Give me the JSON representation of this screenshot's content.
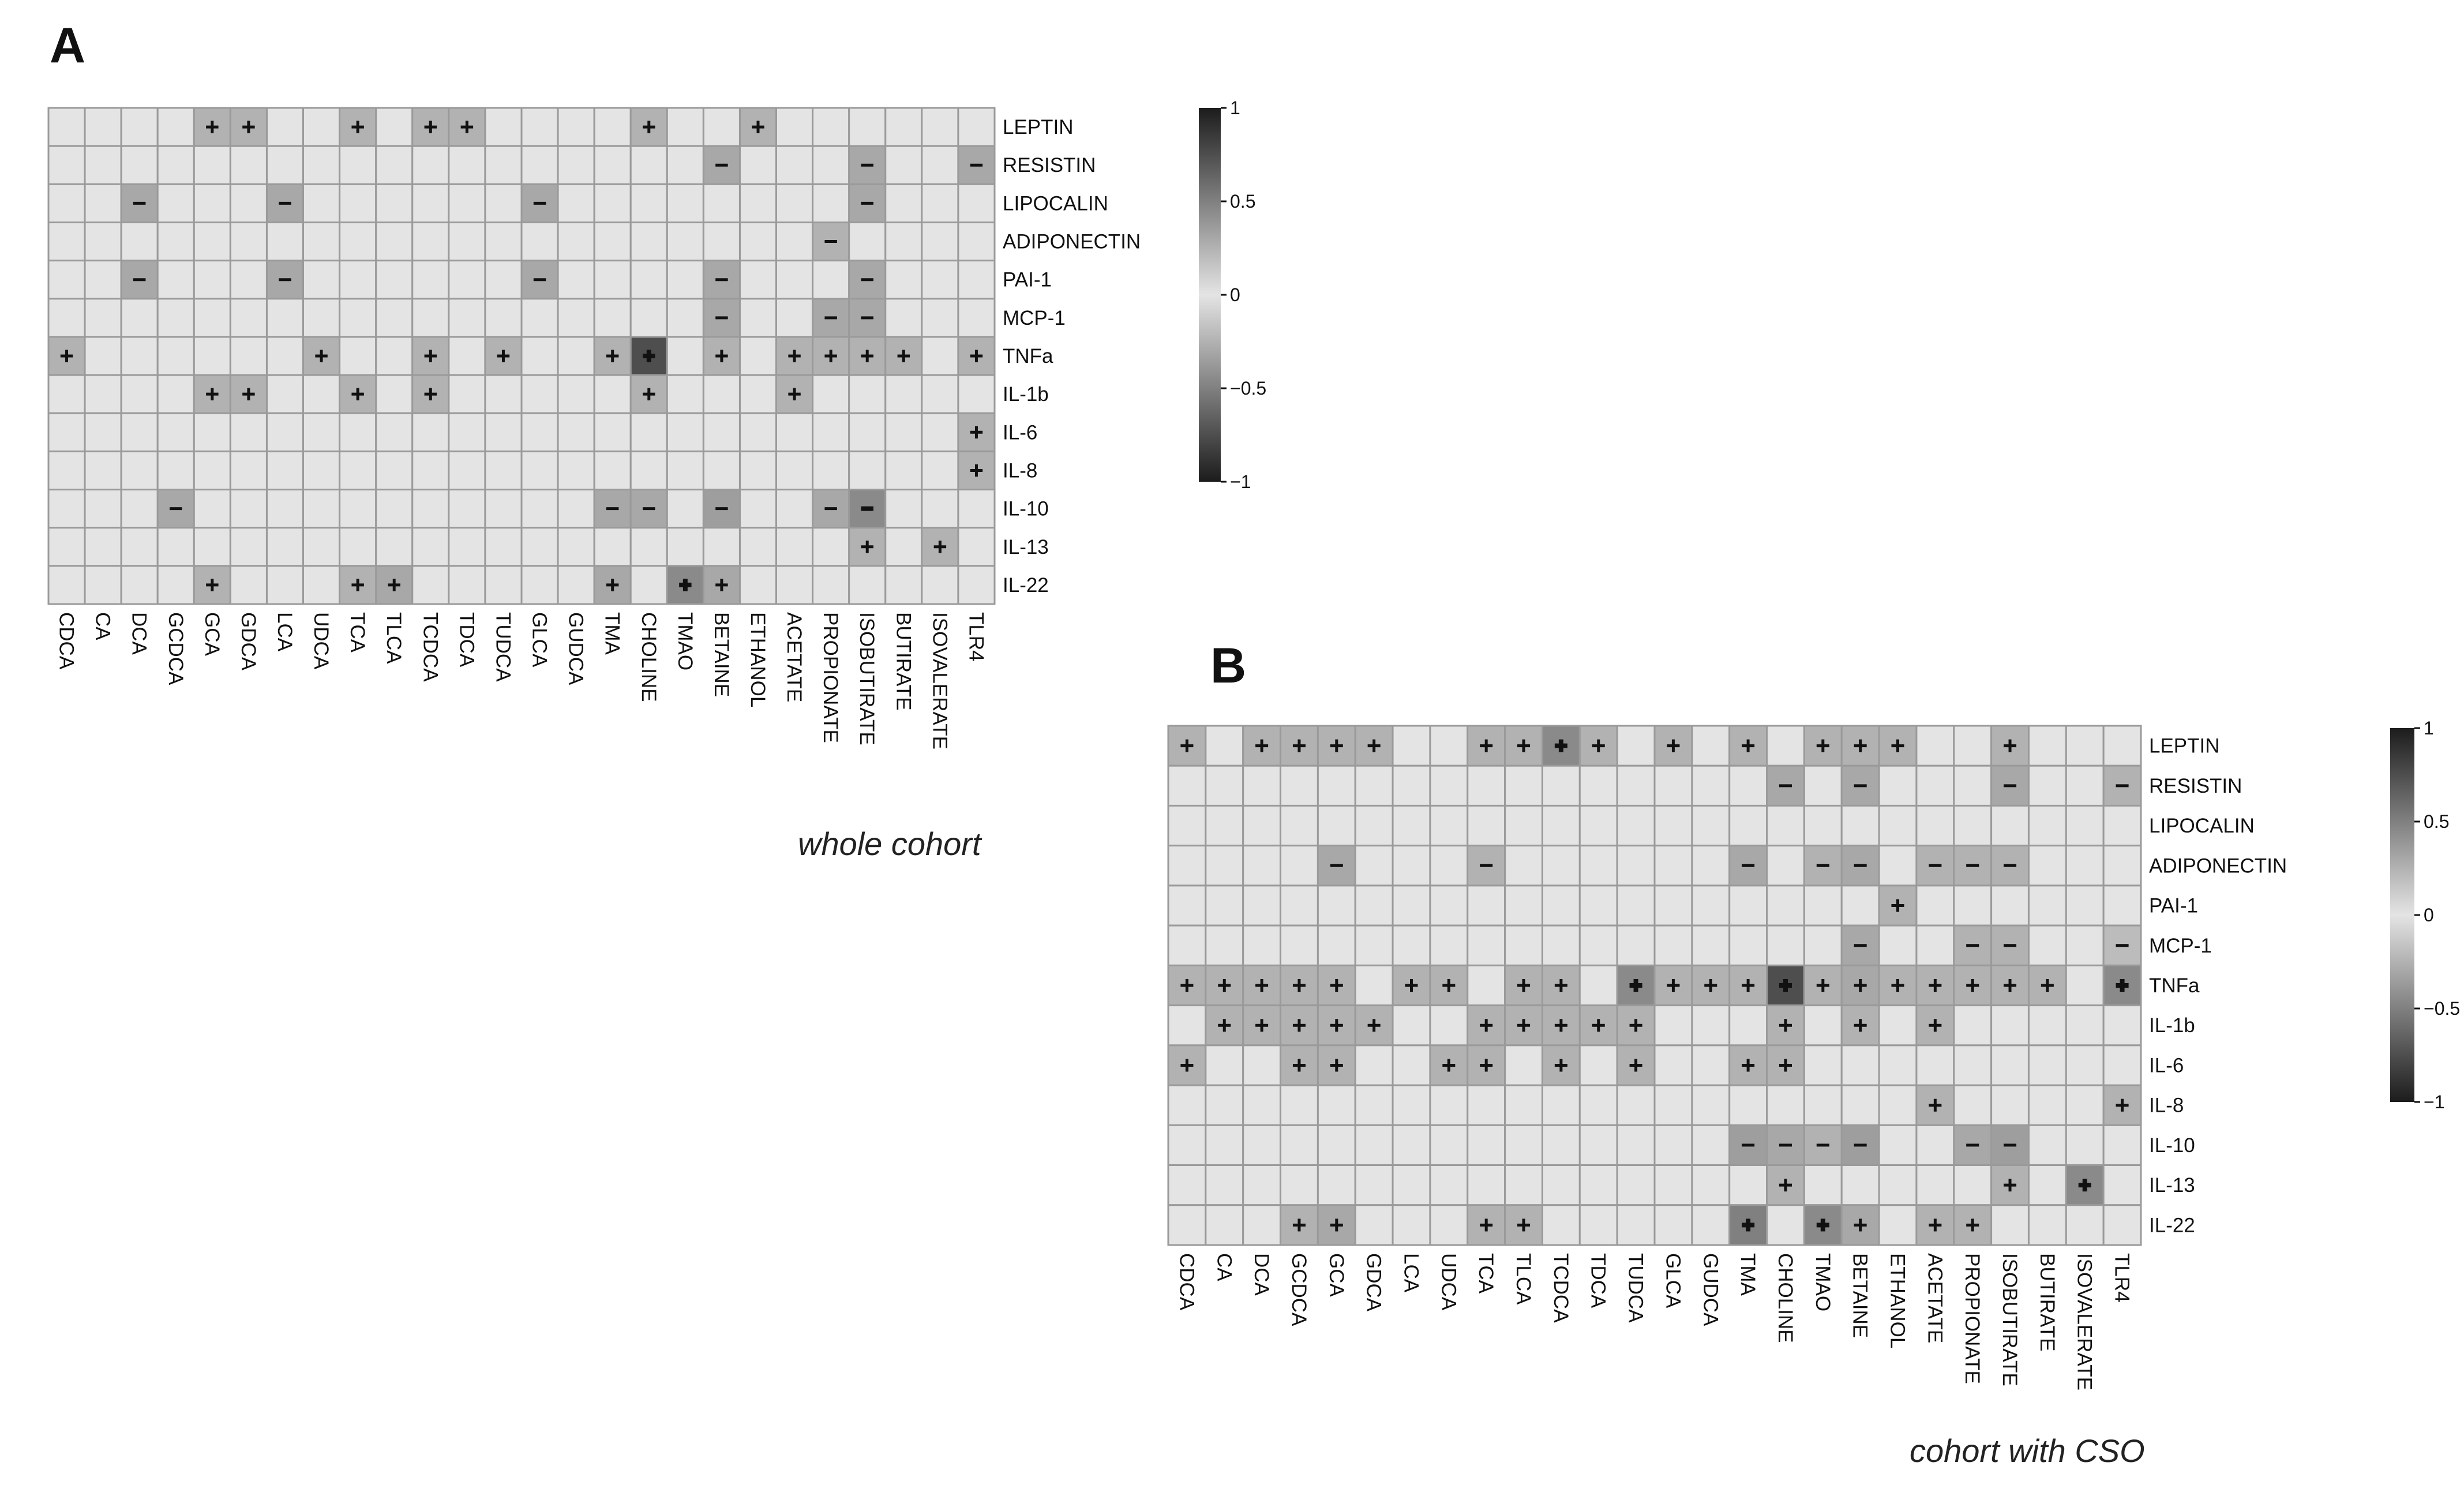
{
  "panels": [
    {
      "letter": "A",
      "caption": "whole cohort"
    },
    {
      "letter": "B",
      "caption": "cohort with CSO"
    }
  ],
  "chart_data": [
    {
      "type": "heatmap",
      "panel": "A",
      "columns": [
        "CDCA",
        "CA",
        "DCA",
        "GCDCA",
        "GCA",
        "GDCA",
        "LCA",
        "UDCA",
        "TCA",
        "TLCA",
        "TCDCA",
        "TDCA",
        "TUDCA",
        "GLCA",
        "GUDCA",
        "TMA",
        "CHOLINE",
        "TMAO",
        "BETAINE",
        "ETHANOL",
        "ACETATE",
        "PROPIONATE",
        "ISOBUTIRATE",
        "BUTIRATE",
        "ISOVALERATE",
        "TLR4"
      ],
      "rows": [
        "LEPTIN",
        "RESISTIN",
        "LIPOCALIN",
        "ADIPONECTIN",
        "PAI-1",
        "MCP-1",
        "TNFa",
        "IL-1b",
        "IL-6",
        "IL-8",
        "IL-10",
        "IL-13",
        "IL-22"
      ],
      "values": [
        [
          0,
          0,
          0,
          0,
          0.25,
          0.25,
          0,
          0,
          0.25,
          0,
          0.25,
          0.25,
          0,
          0,
          0,
          0,
          0.25,
          0,
          0,
          0.25,
          0,
          0,
          0,
          0,
          0,
          0
        ],
        [
          0,
          0,
          0,
          0,
          0,
          0,
          0,
          0,
          0,
          0,
          0,
          0,
          0,
          0,
          0,
          0,
          0,
          0,
          -0.3,
          0,
          0,
          0,
          -0.3,
          0,
          0,
          -0.3
        ],
        [
          0,
          0,
          -0.3,
          0,
          0,
          0,
          -0.3,
          0,
          0,
          0,
          0,
          0,
          0,
          -0.3,
          0,
          0,
          0,
          0,
          0,
          0,
          0,
          0,
          -0.3,
          0,
          0,
          0
        ],
        [
          0,
          0,
          0,
          0,
          0,
          0,
          0,
          0,
          0,
          0,
          0,
          0,
          0,
          0,
          0,
          0,
          0,
          0,
          0,
          0,
          0,
          -0.25,
          0,
          0,
          0,
          0
        ],
        [
          0,
          0,
          -0.3,
          0,
          0,
          0,
          -0.3,
          0,
          0,
          0,
          0,
          0,
          0,
          -0.3,
          0,
          0,
          0,
          0,
          -0.3,
          0,
          0,
          0,
          -0.3,
          0,
          0,
          0
        ],
        [
          0,
          0,
          0,
          0,
          0,
          0,
          0,
          0,
          0,
          0,
          0,
          0,
          0,
          0,
          0,
          0,
          0,
          0,
          -0.3,
          0,
          0,
          -0.3,
          -0.3,
          0,
          0,
          0
        ],
        [
          0.25,
          0,
          0,
          0,
          0,
          0,
          0,
          0.25,
          0,
          0,
          0.25,
          0,
          0.25,
          0,
          0,
          0.25,
          0.75,
          0,
          0.25,
          0,
          0.25,
          0.25,
          0.25,
          0.25,
          0,
          0.25
        ],
        [
          0,
          0,
          0,
          0,
          0.25,
          0.25,
          0,
          0,
          0.25,
          0,
          0.25,
          0,
          0,
          0,
          0,
          0,
          0.25,
          0,
          0,
          0,
          0.25,
          0,
          0,
          0,
          0,
          0
        ],
        [
          0,
          0,
          0,
          0,
          0,
          0,
          0,
          0,
          0,
          0,
          0,
          0,
          0,
          0,
          0,
          0,
          0,
          0,
          0,
          0,
          0,
          0,
          0,
          0,
          0,
          0.25
        ],
        [
          0,
          0,
          0,
          0,
          0,
          0,
          0,
          0,
          0,
          0,
          0,
          0,
          0,
          0,
          0,
          0,
          0,
          0,
          0,
          0,
          0,
          0,
          0,
          0,
          0,
          0.25
        ],
        [
          0,
          0,
          0,
          -0.3,
          0,
          0,
          0,
          0,
          0,
          0,
          0,
          0,
          0,
          0,
          0,
          -0.3,
          -0.3,
          0,
          -0.35,
          0,
          0,
          -0.3,
          -0.45,
          0,
          0,
          0
        ],
        [
          0,
          0,
          0,
          0,
          0,
          0,
          0,
          0,
          0,
          0,
          0,
          0,
          0,
          0,
          0,
          0,
          0,
          0,
          0,
          0,
          0,
          0,
          0.25,
          0,
          0.25,
          0
        ],
        [
          0,
          0,
          0,
          0,
          0.25,
          0,
          0,
          0,
          0.25,
          0.3,
          0,
          0,
          0,
          0,
          0,
          0.3,
          0,
          0.45,
          0.3,
          0,
          0,
          0,
          0,
          0,
          0,
          0
        ]
      ],
      "color_scale": {
        "min": -1,
        "max": 1,
        "ticks": [
          1,
          0.5,
          0,
          -0.5,
          -1
        ],
        "tick_labels": [
          "1",
          "0.5",
          "0",
          "−0.5",
          "−1"
        ]
      }
    },
    {
      "type": "heatmap",
      "panel": "B",
      "columns": [
        "CDCA",
        "CA",
        "DCA",
        "GCDCA",
        "GCA",
        "GDCA",
        "LCA",
        "UDCA",
        "TCA",
        "TLCA",
        "TCDCA",
        "TDCA",
        "TUDCA",
        "GLCA",
        "GUDCA",
        "TMA",
        "CHOLINE",
        "TMAO",
        "BETAINE",
        "ETHANOL",
        "ACETATE",
        "PROPIONATE",
        "ISOBUTIRATE",
        "BUTIRATE",
        "ISOVALERATE",
        "TLR4"
      ],
      "rows": [
        "LEPTIN",
        "RESISTIN",
        "LIPOCALIN",
        "ADIPONECTIN",
        "PAI-1",
        "MCP-1",
        "TNFa",
        "IL-1b",
        "IL-6",
        "IL-8",
        "IL-10",
        "IL-13",
        "IL-22"
      ],
      "values": [
        [
          0.25,
          0,
          0.25,
          0.25,
          0.25,
          0.25,
          0,
          0,
          0.25,
          0.25,
          0.45,
          0.25,
          0,
          0.25,
          0,
          0.25,
          0,
          0.25,
          0.25,
          0.25,
          0,
          0,
          0.25,
          0,
          0,
          0
        ],
        [
          0,
          0,
          0,
          0,
          0,
          0,
          0,
          0,
          0,
          0,
          0,
          0,
          0,
          0,
          0,
          0,
          -0.3,
          0,
          -0.3,
          0,
          0,
          0,
          -0.3,
          0,
          0,
          -0.25
        ],
        [
          0,
          0,
          0,
          0,
          0,
          0,
          0,
          0,
          0,
          0,
          0,
          0,
          0,
          0,
          0,
          0,
          0,
          0,
          0,
          0,
          0,
          0,
          0,
          0,
          0,
          0
        ],
        [
          0,
          0,
          0,
          0,
          -0.3,
          0,
          0,
          0,
          -0.25,
          0,
          0,
          0,
          0,
          0,
          0,
          -0.3,
          0,
          -0.25,
          -0.3,
          0,
          -0.25,
          -0.25,
          -0.25,
          0,
          0,
          0
        ],
        [
          0,
          0,
          0,
          0,
          0,
          0,
          0,
          0,
          0,
          0,
          0,
          0,
          0,
          0,
          0,
          0,
          0,
          0,
          0,
          0.25,
          0,
          0,
          0,
          0,
          0,
          0
        ],
        [
          0,
          0,
          0,
          0,
          0,
          0,
          0,
          0,
          0,
          0,
          0,
          0,
          0,
          0,
          0,
          0,
          0,
          0,
          -0.3,
          0,
          0,
          -0.25,
          -0.25,
          0,
          0,
          -0.2
        ],
        [
          0.25,
          0.25,
          0.25,
          0.25,
          0.25,
          0,
          0.25,
          0.25,
          0,
          0.25,
          0.25,
          0,
          0.45,
          0.25,
          0.25,
          0.25,
          0.75,
          0.25,
          0.3,
          0.25,
          0.25,
          0.25,
          0.25,
          0.25,
          0,
          0.45
        ],
        [
          0,
          0.25,
          0.25,
          0.25,
          0.25,
          0.25,
          0,
          0,
          0.25,
          0.25,
          0.25,
          0.25,
          0.25,
          0,
          0,
          0,
          0.25,
          0,
          0.25,
          0,
          0.25,
          0,
          0,
          0,
          0,
          0
        ],
        [
          0.25,
          0,
          0,
          0.25,
          0.25,
          0,
          0,
          0.25,
          0.25,
          0,
          0.25,
          0,
          0.25,
          0,
          0,
          0.25,
          0.25,
          0,
          0,
          0,
          0,
          0,
          0,
          0,
          0,
          0
        ],
        [
          0,
          0,
          0,
          0,
          0,
          0,
          0,
          0,
          0,
          0,
          0,
          0,
          0,
          0,
          0,
          0,
          0,
          0,
          0,
          0,
          0.25,
          0,
          0,
          0,
          0,
          0.25
        ],
        [
          0,
          0,
          0,
          0,
          0,
          0,
          0,
          0,
          0,
          0,
          0,
          0,
          0,
          0,
          0,
          -0.35,
          -0.3,
          -0.25,
          -0.35,
          0,
          0,
          -0.3,
          -0.35,
          0,
          0,
          0
        ],
        [
          0,
          0,
          0,
          0,
          0,
          0,
          0,
          0,
          0,
          0,
          0,
          0,
          0,
          0,
          0,
          0,
          0.25,
          0,
          0,
          0,
          0,
          0,
          0.25,
          0,
          0.45,
          0
        ],
        [
          0,
          0,
          0,
          0.25,
          0.3,
          0,
          0,
          0,
          0.25,
          0.25,
          0,
          0,
          0,
          0,
          0,
          0.5,
          0,
          0.45,
          0.3,
          0,
          0.25,
          0.25,
          0,
          0,
          0,
          0
        ]
      ],
      "color_scale": {
        "min": -1,
        "max": 1,
        "ticks": [
          1,
          0.5,
          0,
          -0.5,
          -1
        ],
        "tick_labels": [
          "1",
          "0.5",
          "0",
          "−0.5",
          "−1"
        ]
      }
    }
  ]
}
